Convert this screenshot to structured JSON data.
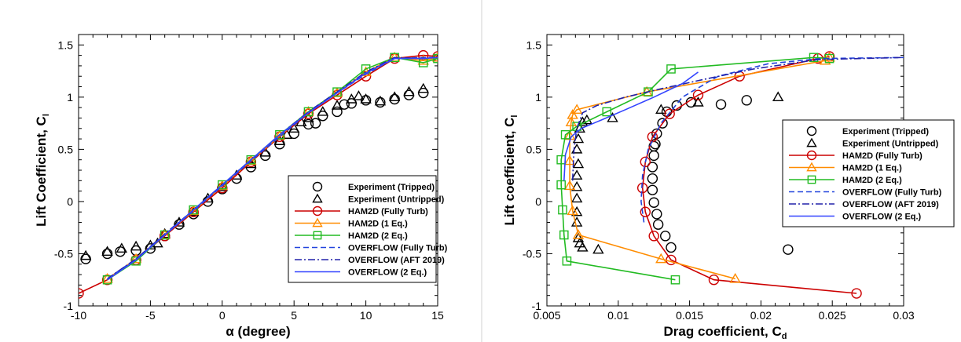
{
  "chart_data": [
    {
      "type": "line",
      "title": "",
      "xlabel": "α (degree)",
      "ylabel": "Lift Coefficient, C",
      "ylabel_sub": "l",
      "xlim": [
        -10,
        15
      ],
      "ylim": [
        -1,
        1.6
      ],
      "xticks": [
        -10,
        -5,
        0,
        5,
        10,
        15
      ],
      "yticks": [
        -1,
        -0.5,
        0,
        0.5,
        1,
        1.5
      ],
      "xtick_labels": [
        "-10",
        "-5",
        "0",
        "5",
        "10",
        "15"
      ],
      "ytick_labels": [
        "-1",
        "-0.5",
        "0",
        "0.5",
        "1",
        "1.5"
      ],
      "grid": false,
      "legend_position": "bottom-right",
      "series": [
        {
          "name": "Experiment (Tripped)",
          "style": "marker",
          "marker": "circle",
          "color": "#000000",
          "x": [
            -9.5,
            -8,
            -7.1,
            -6,
            -5,
            -4,
            -3,
            -2,
            -1,
            0,
            1,
            2,
            3,
            4,
            5,
            6,
            6.5,
            7,
            8,
            8.5,
            9,
            10,
            11,
            12,
            13,
            14
          ],
          "y": [
            -0.55,
            -0.5,
            -0.48,
            -0.47,
            -0.45,
            -0.33,
            -0.22,
            -0.12,
            0.0,
            0.12,
            0.22,
            0.33,
            0.44,
            0.55,
            0.65,
            0.74,
            0.75,
            0.82,
            0.86,
            0.93,
            0.94,
            0.97,
            0.95,
            0.98,
            1.02,
            1.04
          ]
        },
        {
          "name": "Experiment (Untripped)",
          "style": "marker",
          "marker": "triangle",
          "color": "#000000",
          "x": [
            -9.5,
            -8,
            -7,
            -6,
            -5,
            -4.5,
            -4,
            -3,
            -2,
            -1,
            0,
            1,
            2,
            3,
            4,
            4.5,
            5,
            5.5,
            6,
            7,
            8,
            9,
            9.5,
            10,
            11,
            12,
            13,
            14
          ],
          "y": [
            -0.52,
            -0.48,
            -0.45,
            -0.43,
            -0.42,
            -0.4,
            -0.31,
            -0.2,
            -0.1,
            0.03,
            0.14,
            0.25,
            0.36,
            0.47,
            0.58,
            0.64,
            0.7,
            0.76,
            0.8,
            0.86,
            0.92,
            0.98,
            1.01,
            0.98,
            0.96,
            1.0,
            1.05,
            1.08
          ]
        },
        {
          "name": "HAM2D (Fully Turb)",
          "style": "line-marker",
          "marker": "circle",
          "color": "#cc0000",
          "dash": "",
          "x": [
            -10,
            -8,
            -6,
            -4,
            -2,
            0,
            2,
            4,
            6,
            8,
            10,
            12,
            14,
            15
          ],
          "y": [
            -0.88,
            -0.75,
            -0.56,
            -0.33,
            -0.1,
            0.13,
            0.38,
            0.62,
            0.84,
            1.02,
            1.2,
            1.37,
            1.4,
            1.39
          ]
        },
        {
          "name": "HAM2D (1 Eq.)",
          "style": "line-marker",
          "marker": "triangle",
          "color": "#ff8c00",
          "dash": "",
          "x": [
            -8,
            -6,
            -4,
            -2,
            0,
            2,
            4,
            6,
            8,
            10,
            12,
            14,
            15
          ],
          "y": [
            -0.74,
            -0.55,
            -0.32,
            -0.09,
            0.15,
            0.39,
            0.63,
            0.86,
            1.04,
            1.24,
            1.38,
            1.35,
            1.38
          ]
        },
        {
          "name": "HAM2D (2 Eq.)",
          "style": "line-marker",
          "marker": "square",
          "color": "#22bb22",
          "dash": "",
          "x": [
            -8,
            -6,
            -4,
            -2,
            0,
            2,
            4,
            6,
            8,
            10,
            12,
            14,
            15
          ],
          "y": [
            -0.75,
            -0.57,
            -0.32,
            -0.08,
            0.16,
            0.4,
            0.64,
            0.86,
            1.05,
            1.27,
            1.38,
            1.33,
            1.37
          ]
        },
        {
          "name": "OVERFLOW (Fully Turb)",
          "style": "line",
          "color": "#2244dd",
          "dash": "7,4",
          "x": [
            -8,
            -6,
            -4,
            -2,
            0,
            2,
            4,
            6,
            8,
            10,
            12,
            14,
            15
          ],
          "y": [
            -0.74,
            -0.55,
            -0.32,
            -0.09,
            0.15,
            0.39,
            0.62,
            0.85,
            1.04,
            1.22,
            1.37,
            1.38,
            1.38
          ]
        },
        {
          "name": "OVERFLOW (AFT 2019)",
          "style": "line",
          "color": "#2222aa",
          "dash": "9,3,2,3",
          "x": [
            -8,
            -6,
            -4,
            -2,
            0,
            2,
            4,
            6,
            8,
            10,
            12,
            14,
            15
          ],
          "y": [
            -0.74,
            -0.55,
            -0.31,
            -0.08,
            0.16,
            0.4,
            0.64,
            0.86,
            1.05,
            1.24,
            1.38,
            1.37,
            1.38
          ]
        },
        {
          "name": "OVERFLOW (2 Eq.)",
          "style": "line",
          "color": "#3344ff",
          "dash": "",
          "x": [
            -8,
            -6,
            -4,
            -2,
            0,
            2,
            4,
            6,
            8,
            10,
            12,
            14,
            15
          ],
          "y": [
            -0.75,
            -0.56,
            -0.32,
            -0.08,
            0.16,
            0.4,
            0.64,
            0.85,
            1.04,
            1.23,
            1.37,
            1.37,
            1.38
          ]
        }
      ]
    },
    {
      "type": "line",
      "title": "",
      "xlabel": "Drag coefficient, C",
      "xlabel_sub": "d",
      "ylabel": "Lift coefficient, C",
      "ylabel_sub": "l",
      "xlim": [
        0.005,
        0.03
      ],
      "ylim": [
        -1,
        1.6
      ],
      "xticks": [
        0.005,
        0.01,
        0.015,
        0.02,
        0.025,
        0.03
      ],
      "yticks": [
        -1,
        -0.5,
        0,
        0.5,
        1,
        1.5
      ],
      "xtick_labels": [
        "0.005",
        "0.01",
        "0.015",
        "0.02",
        "0.025",
        "0.03"
      ],
      "ytick_labels": [
        "-1",
        "-0.5",
        "0",
        "0.5",
        "1",
        "1.5"
      ],
      "grid": false,
      "legend_position": "right",
      "series": [
        {
          "name": "Experiment (Tripped)",
          "style": "marker",
          "marker": "circle",
          "color": "#000000",
          "x": [
            0.0219,
            0.0137,
            0.0133,
            0.0128,
            0.0127,
            0.0125,
            0.0124,
            0.0124,
            0.0124,
            0.0125,
            0.0125,
            0.0126,
            0.0127,
            0.0131,
            0.0134,
            0.0141,
            0.0151,
            0.0172,
            0.019
          ],
          "y": [
            -0.46,
            -0.44,
            -0.33,
            -0.22,
            -0.12,
            -0.01,
            0.11,
            0.22,
            0.33,
            0.44,
            0.53,
            0.55,
            0.65,
            0.75,
            0.86,
            0.92,
            0.95,
            0.93,
            0.97
          ]
        },
        {
          "name": "Experiment (Untripped)",
          "style": "marker",
          "marker": "triangle",
          "color": "#000000",
          "x": [
            0.0086,
            0.0075,
            0.0073,
            0.0072,
            0.0071,
            0.0071,
            0.0071,
            0.0071,
            0.0071,
            0.0072,
            0.0071,
            0.0072,
            0.0073,
            0.0075,
            0.0078,
            0.0096,
            0.013,
            0.0156,
            0.0212
          ],
          "y": [
            -0.46,
            -0.44,
            -0.4,
            -0.35,
            -0.2,
            -0.1,
            0.03,
            0.14,
            0.25,
            0.36,
            0.5,
            0.6,
            0.7,
            0.76,
            0.78,
            0.8,
            0.88,
            0.95,
            1.0
          ]
        },
        {
          "name": "HAM2D (Fully Turb)",
          "style": "line-marker",
          "marker": "circle",
          "color": "#cc0000",
          "dash": "",
          "x": [
            0.0267,
            0.0167,
            0.0137,
            0.0125,
            0.0119,
            0.0117,
            0.0119,
            0.0124,
            0.0136,
            0.0156,
            0.0185,
            0.024,
            0.0248
          ],
          "y": [
            -0.88,
            -0.75,
            -0.56,
            -0.33,
            -0.1,
            0.13,
            0.38,
            0.62,
            0.84,
            1.02,
            1.2,
            1.37,
            1.39
          ]
        },
        {
          "name": "HAM2D (1 Eq.)",
          "style": "line-marker",
          "marker": "triangle",
          "color": "#ff8c00",
          "dash": "",
          "x": [
            0.0182,
            0.013,
            0.0072,
            0.0068,
            0.0066,
            0.0066,
            0.0066,
            0.0067,
            0.0068,
            0.0071,
            0.012,
            0.0245,
            0.0248
          ],
          "y": [
            -0.74,
            -0.55,
            -0.32,
            -0.09,
            0.15,
            0.39,
            0.63,
            0.76,
            0.83,
            0.88,
            1.05,
            1.35,
            1.38
          ]
        },
        {
          "name": "HAM2D (2 Eq.)",
          "style": "line-marker",
          "marker": "square",
          "color": "#22bb22",
          "dash": "",
          "x": [
            0.014,
            0.0064,
            0.0062,
            0.0061,
            0.006,
            0.006,
            0.0063,
            0.0071,
            0.0092,
            0.0121,
            0.0137,
            0.0237,
            0.0248
          ],
          "y": [
            -0.75,
            -0.57,
            -0.32,
            -0.08,
            0.16,
            0.4,
            0.64,
            0.72,
            0.86,
            1.05,
            1.27,
            1.38,
            1.37
          ]
        },
        {
          "name": "OVERFLOW (Fully Turb)",
          "style": "line",
          "color": "#2244dd",
          "dash": "7,4",
          "x": [
            0.0118,
            0.0116,
            0.0117,
            0.0121,
            0.013,
            0.0145,
            0.017,
            0.0205,
            0.0242,
            0.03
          ],
          "y": [
            -0.2,
            0.0,
            0.25,
            0.5,
            0.75,
            1.0,
            1.2,
            1.32,
            1.37,
            1.38
          ]
        },
        {
          "name": "OVERFLOW (AFT 2019)",
          "style": "line",
          "color": "#2222aa",
          "dash": "9,3,2,3",
          "x": [
            0.0068,
            0.0069,
            0.0071,
            0.0075,
            0.0085,
            0.0105,
            0.013,
            0.016,
            0.0195,
            0.024,
            0.03
          ],
          "y": [
            0.2,
            0.5,
            0.7,
            0.85,
            0.92,
            1.0,
            1.08,
            1.17,
            1.27,
            1.36,
            1.38
          ]
        },
        {
          "name": "OVERFLOW (2 Eq.)",
          "style": "line",
          "color": "#3344ff",
          "dash": "",
          "x": [
            0.0062,
            0.0063,
            0.0067,
            0.0074,
            0.0088,
            0.0105,
            0.0125,
            0.0145,
            0.0156
          ],
          "y": [
            0.2,
            0.45,
            0.62,
            0.7,
            0.78,
            0.88,
            1.0,
            1.13,
            1.24
          ]
        }
      ]
    }
  ]
}
